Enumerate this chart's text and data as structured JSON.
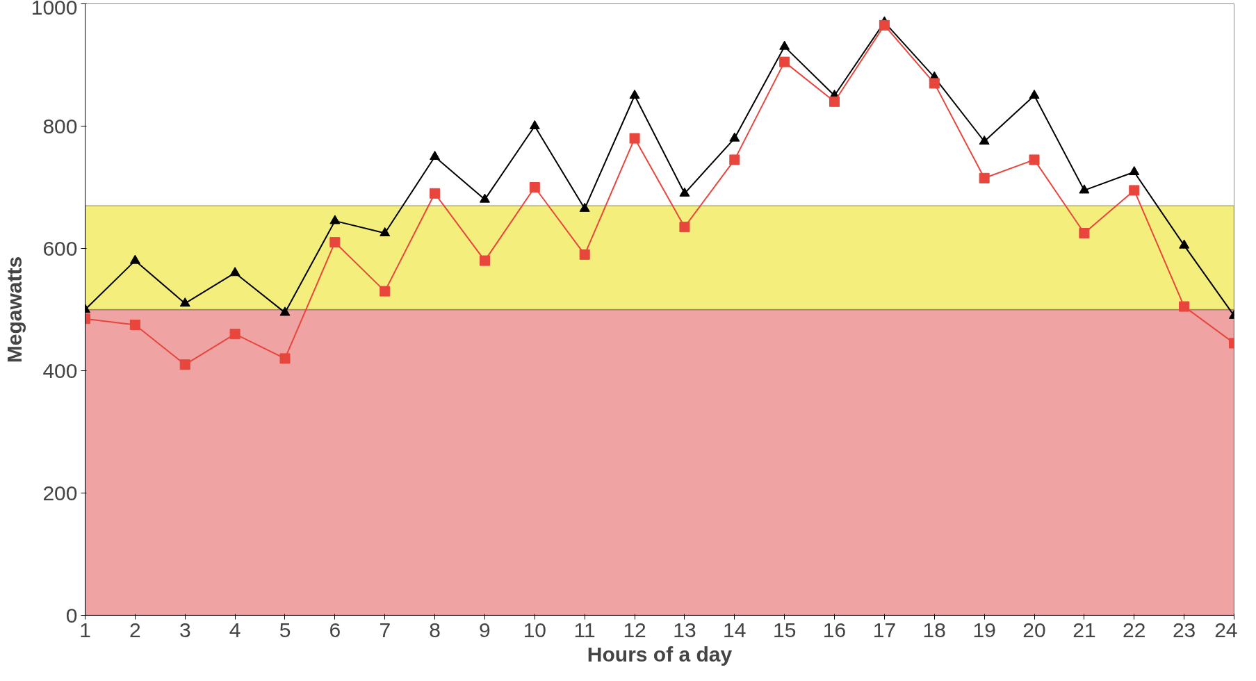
{
  "chart_data": {
    "type": "line",
    "xlabel": "Hours of a day",
    "ylabel": "Megawatts",
    "x": [
      1,
      2,
      3,
      4,
      5,
      6,
      7,
      8,
      9,
      10,
      11,
      12,
      13,
      14,
      15,
      16,
      17,
      18,
      19,
      20,
      21,
      22,
      23,
      24
    ],
    "xlim": [
      1,
      24
    ],
    "xticks": [
      1,
      2,
      3,
      4,
      5,
      6,
      7,
      8,
      9,
      10,
      11,
      12,
      13,
      14,
      15,
      16,
      17,
      18,
      19,
      20,
      21,
      22,
      23,
      24
    ],
    "ylim": [
      0,
      1000
    ],
    "yticks": [
      0,
      200,
      400,
      600,
      800,
      1000
    ],
    "grid": false,
    "bands": [
      {
        "axis": "y",
        "from": 0,
        "to": 500,
        "color": "#efa3a3"
      },
      {
        "axis": "y",
        "from": 500,
        "to": 670,
        "color": "#f4ef7c"
      }
    ],
    "series": [
      {
        "color": "#000000",
        "marker": "triangle",
        "values": [
          500,
          580,
          510,
          560,
          495,
          645,
          625,
          750,
          680,
          800,
          665,
          850,
          690,
          780,
          930,
          850,
          970,
          880,
          775,
          850,
          695,
          725,
          605,
          490
        ]
      },
      {
        "color": "#e8453c",
        "marker": "square",
        "values": [
          485,
          475,
          410,
          460,
          420,
          610,
          530,
          690,
          580,
          700,
          590,
          780,
          635,
          745,
          905,
          840,
          965,
          870,
          715,
          745,
          625,
          695,
          505,
          445
        ]
      }
    ]
  }
}
